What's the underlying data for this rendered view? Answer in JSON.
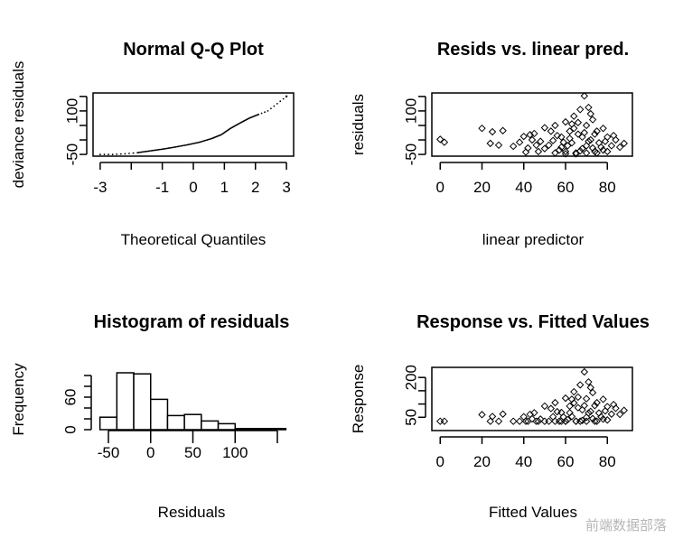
{
  "chart_data": [
    {
      "type": "scatter",
      "title": "Normal Q-Q Plot",
      "xlabel": "Theoretical Quantiles",
      "ylabel": "deviance residuals",
      "xlim": [
        -3.23,
        3.23
      ],
      "ylim": [
        -56,
        162
      ],
      "xticks": [
        -3,
        -2,
        -1,
        0,
        1,
        2,
        3
      ],
      "xtick_labels": [
        "-3",
        "",
        "-1",
        "0",
        "1",
        "2",
        "3"
      ],
      "yticks": [
        -50,
        0,
        50,
        100,
        150
      ],
      "ytick_labels": [
        "-50",
        "",
        "",
        "100",
        ""
      ],
      "quantile_curve": [
        [
          -3,
          -50
        ],
        [
          -2.6,
          -50
        ],
        [
          -2.2,
          -48
        ],
        [
          -1.8,
          -44
        ],
        [
          -1.4,
          -38
        ],
        [
          -1,
          -32
        ],
        [
          -0.6,
          -25
        ],
        [
          -0.2,
          -17
        ],
        [
          0.2,
          -8
        ],
        [
          0.6,
          5
        ],
        [
          0.9,
          18
        ],
        [
          1.2,
          40
        ],
        [
          1.5,
          58
        ],
        [
          1.8,
          75
        ],
        [
          2.1,
          88
        ],
        [
          2.4,
          100
        ],
        [
          2.7,
          125
        ],
        [
          3,
          150
        ]
      ]
    },
    {
      "type": "scatter",
      "title": "Resids vs. linear pred.",
      "xlabel": "linear predictor",
      "ylabel": "residuals",
      "xlim": [
        -4,
        92
      ],
      "ylim": [
        -56,
        162
      ],
      "xticks": [
        0,
        20,
        40,
        60,
        80
      ],
      "yticks": [
        -50,
        0,
        50,
        100,
        150
      ],
      "ytick_labels": [
        "-50",
        "",
        "",
        "100",
        ""
      ],
      "points": [
        [
          0,
          2
        ],
        [
          2,
          -8
        ],
        [
          20,
          40
        ],
        [
          25,
          28
        ],
        [
          30,
          32
        ],
        [
          24,
          -12
        ],
        [
          28,
          -18
        ],
        [
          35,
          -22
        ],
        [
          38,
          -8
        ],
        [
          40,
          12
        ],
        [
          42,
          -28
        ],
        [
          45,
          22
        ],
        [
          48,
          -5
        ],
        [
          50,
          42
        ],
        [
          52,
          -18
        ],
        [
          55,
          50
        ],
        [
          57,
          -35
        ],
        [
          58,
          10
        ],
        [
          60,
          62
        ],
        [
          60,
          -40
        ],
        [
          62,
          30
        ],
        [
          63,
          -10
        ],
        [
          64,
          82
        ],
        [
          65,
          -45
        ],
        [
          66,
          20
        ],
        [
          67,
          105
        ],
        [
          68,
          -30
        ],
        [
          69,
          152
        ],
        [
          70,
          50
        ],
        [
          70,
          -20
        ],
        [
          72,
          0
        ],
        [
          73,
          70
        ],
        [
          74,
          -40
        ],
        [
          75,
          30
        ],
        [
          76,
          -10
        ],
        [
          78,
          40
        ],
        [
          78,
          -35
        ],
        [
          80,
          10
        ],
        [
          82,
          -20
        ],
        [
          84,
          0
        ],
        [
          86,
          -25
        ],
        [
          88,
          -12
        ],
        [
          55,
          -45
        ],
        [
          60,
          -48
        ],
        [
          65,
          -48
        ],
        [
          70,
          -45
        ],
        [
          62,
          5
        ],
        [
          58,
          -25
        ],
        [
          66,
          60
        ],
        [
          71,
          112
        ],
        [
          53,
          30
        ],
        [
          47,
          -40
        ],
        [
          44,
          0
        ],
        [
          72,
          90
        ],
        [
          75,
          -45
        ],
        [
          50,
          -30
        ],
        [
          56,
          15
        ],
        [
          61,
          -20
        ],
        [
          64,
          40
        ],
        [
          68,
          10
        ],
        [
          74,
          20
        ],
        [
          77,
          -25
        ],
        [
          80,
          -40
        ],
        [
          83,
          15
        ],
        [
          59,
          -8
        ],
        [
          63,
          55
        ],
        [
          67,
          -38
        ],
        [
          69,
          25
        ],
        [
          71,
          -5
        ],
        [
          73,
          -28
        ],
        [
          46,
          -18
        ],
        [
          43,
          18
        ],
        [
          41,
          -42
        ],
        [
          54,
          -2
        ],
        [
          79,
          -5
        ]
      ]
    },
    {
      "type": "bar",
      "title": "Histogram of residuals",
      "xlabel": "Residuals",
      "ylabel": "Frequency",
      "bin_edges": [
        -60,
        -40,
        -20,
        0,
        20,
        40,
        60,
        80,
        100,
        120,
        140,
        160
      ],
      "values": [
        23,
        105,
        103,
        56,
        26,
        28,
        16,
        11,
        2,
        2,
        2
      ],
      "xticks": [
        -50,
        0,
        50,
        100,
        150
      ],
      "xtick_labels": [
        "-50",
        "0",
        "50",
        "100",
        ""
      ],
      "yticks": [
        0,
        20,
        40,
        60,
        80,
        100
      ],
      "ytick_labels": [
        "0",
        "",
        "",
        "60",
        "",
        ""
      ]
    },
    {
      "type": "scatter",
      "title": "Response vs. Fitted Values",
      "xlabel": "Fitted Values",
      "ylabel": "Response",
      "xlim": [
        -4,
        92
      ],
      "ylim": [
        0,
        238
      ],
      "xticks": [
        0,
        20,
        40,
        60,
        80
      ],
      "yticks": [
        50,
        100,
        150,
        200
      ],
      "ytick_labels": [
        "50",
        "",
        "",
        "200"
      ]
    }
  ],
  "watermark": "前端数据部落"
}
